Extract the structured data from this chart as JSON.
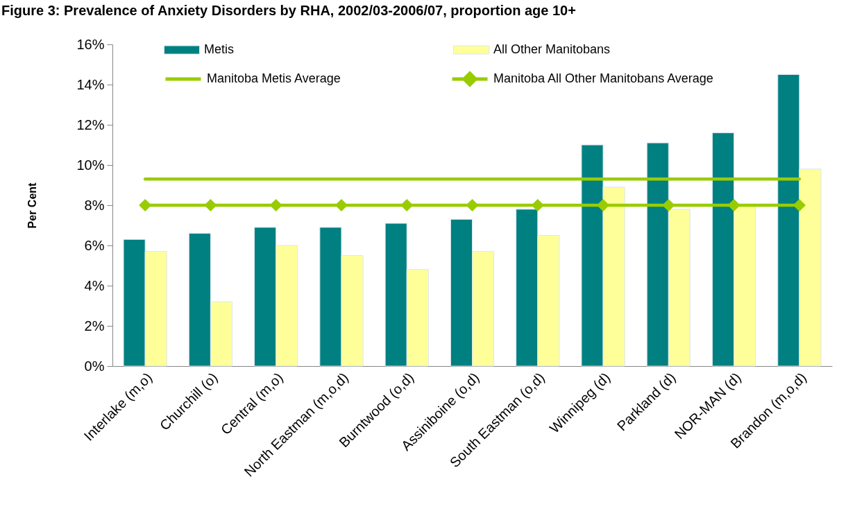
{
  "chart_data": {
    "type": "bar",
    "title": "Figure 3: Prevalence of Anxiety Disorders by RHA, 2002/03-2006/07, proportion age 10+",
    "ylabel": "Per Cent",
    "categories": [
      "Interlake (m,o)",
      "Churchill (o)",
      "Central (m,o)",
      "North Eastman (m,o,d)",
      "Burntwood (o,d)",
      "Assiniboine (o,d)",
      "South Eastman (o,d)",
      "Winnipeg (d)",
      "Parkland (d)",
      "NOR-MAN (d)",
      "Brandon (m,o,d)"
    ],
    "series": [
      {
        "name": "Metis",
        "color": "#008080",
        "values": [
          6.3,
          6.6,
          6.9,
          6.9,
          7.1,
          7.3,
          7.8,
          11.0,
          11.1,
          11.6,
          14.5
        ]
      },
      {
        "name": "All Other Manitobans",
        "color": "#ffff99",
        "values": [
          5.7,
          3.2,
          6.0,
          5.5,
          4.8,
          5.7,
          6.5,
          8.9,
          7.8,
          8.0,
          9.8
        ]
      },
      {
        "name": "Manitoba Metis Average",
        "type": "line",
        "color": "#99cc00",
        "marker": "none",
        "line_style": "solid",
        "values": [
          9.3,
          9.3,
          9.3,
          9.3,
          9.3,
          9.3,
          9.3,
          9.3,
          9.3,
          9.3,
          9.3
        ]
      },
      {
        "name": "Manitoba All Other Manitobans Average",
        "type": "line",
        "color": "#99cc00",
        "marker": "diamond",
        "line_style": "solid",
        "values": [
          8.0,
          8.0,
          8.0,
          8.0,
          8.0,
          8.0,
          8.0,
          8.0,
          8.0,
          8.0,
          8.0
        ]
      }
    ],
    "ylim": [
      0,
      16
    ],
    "yticks": [
      {
        "value": 0,
        "label": "0%"
      },
      {
        "value": 2,
        "label": "2%"
      },
      {
        "value": 4,
        "label": "4%"
      },
      {
        "value": 6,
        "label": "6%"
      },
      {
        "value": 8,
        "label": "8%"
      },
      {
        "value": 10,
        "label": "10%"
      },
      {
        "value": 12,
        "label": "12%"
      },
      {
        "value": 14,
        "label": "14%"
      },
      {
        "value": 16,
        "label": "16%"
      }
    ],
    "legend": "top"
  }
}
